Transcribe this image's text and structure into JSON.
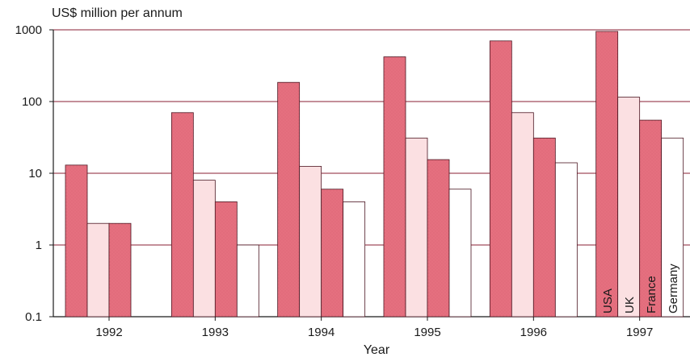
{
  "chart_data": {
    "type": "bar",
    "ylabel": "US$ million per annum",
    "xlabel": "Year",
    "yscale": "log",
    "ylim": [
      0.1,
      1000
    ],
    "yticks": [
      "0.1",
      "1",
      "10",
      "100",
      "1000"
    ],
    "categories": [
      "1992",
      "1993",
      "1994",
      "1995",
      "1996",
      "1997"
    ],
    "grid": "horizontal",
    "legend": "inside bars of 1997 (vertical labels)",
    "series": [
      {
        "name": "USA",
        "color": "#e5707f",
        "values": [
          13,
          70,
          185,
          420,
          700,
          950
        ]
      },
      {
        "name": "UK",
        "color": "#fbe0e2",
        "values": [
          2,
          8,
          12.5,
          31,
          70,
          115
        ]
      },
      {
        "name": "France",
        "color": "#e5707f",
        "values": [
          2,
          4,
          6,
          15.5,
          31,
          55
        ]
      },
      {
        "name": "Germany",
        "color": "#ffffff",
        "values": [
          null,
          1,
          4,
          6,
          14,
          31
        ]
      }
    ]
  }
}
